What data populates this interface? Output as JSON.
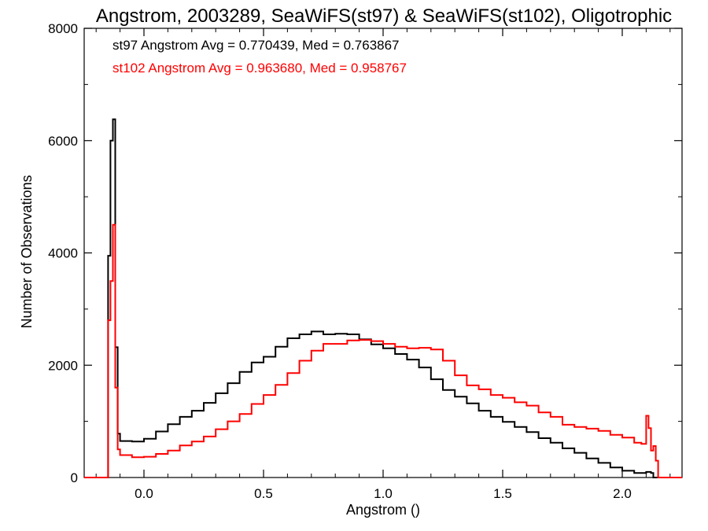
{
  "chart_data": {
    "type": "line",
    "title": "Angstrom, 2003289, SeaWiFS(st97) & SeaWiFS(st102), Oligotrophic",
    "xlabel": "Angstrom ()",
    "ylabel": "Number of Observations",
    "xlim": [
      -0.25,
      2.25
    ],
    "ylim": [
      0,
      8000
    ],
    "x_ticks": [
      0.0,
      0.5,
      1.0,
      1.5,
      2.0
    ],
    "x_tick_labels": [
      "0.0",
      "0.5",
      "1.0",
      "1.5",
      "2.0"
    ],
    "y_ticks": [
      0,
      2000,
      4000,
      6000,
      8000
    ],
    "y_tick_labels": [
      "0",
      "2000",
      "4000",
      "6000",
      "8000"
    ],
    "grid": false,
    "legend_position": "top-left",
    "series": [
      {
        "name": "st97",
        "color": "#000000",
        "annotation": "st97 Angstrom Avg = 0.770439, Med = 0.763867",
        "x": [
          -0.25,
          -0.16,
          -0.15,
          -0.14,
          -0.13,
          -0.12,
          -0.11,
          -0.1,
          -0.05,
          0.0,
          0.05,
          0.1,
          0.15,
          0.2,
          0.25,
          0.3,
          0.35,
          0.4,
          0.45,
          0.5,
          0.55,
          0.6,
          0.65,
          0.7,
          0.75,
          0.8,
          0.85,
          0.9,
          0.95,
          1.0,
          1.05,
          1.1,
          1.15,
          1.2,
          1.25,
          1.3,
          1.35,
          1.4,
          1.45,
          1.5,
          1.55,
          1.6,
          1.65,
          1.7,
          1.75,
          1.8,
          1.85,
          1.9,
          1.95,
          2.0,
          2.05,
          2.1,
          2.12,
          2.13,
          2.15,
          2.25
        ],
        "values": [
          0,
          0,
          3950,
          6000,
          6380,
          2320,
          780,
          650,
          640,
          690,
          820,
          950,
          1080,
          1190,
          1330,
          1500,
          1680,
          1880,
          2050,
          2150,
          2330,
          2480,
          2550,
          2600,
          2550,
          2560,
          2550,
          2460,
          2370,
          2300,
          2200,
          2100,
          1960,
          1750,
          1560,
          1440,
          1320,
          1190,
          1080,
          990,
          900,
          810,
          700,
          620,
          520,
          440,
          340,
          260,
          180,
          120,
          80,
          100,
          80,
          0,
          0,
          0
        ]
      },
      {
        "name": "st102",
        "color": "#ff0000",
        "annotation": "st102 Angstrom Avg = 0.963680, Med = 0.958767",
        "x": [
          -0.25,
          -0.16,
          -0.15,
          -0.14,
          -0.13,
          -0.12,
          -0.11,
          -0.1,
          -0.05,
          0.0,
          0.05,
          0.1,
          0.15,
          0.2,
          0.25,
          0.3,
          0.35,
          0.4,
          0.45,
          0.5,
          0.55,
          0.6,
          0.65,
          0.7,
          0.75,
          0.8,
          0.85,
          0.9,
          0.95,
          1.0,
          1.05,
          1.1,
          1.15,
          1.2,
          1.25,
          1.3,
          1.35,
          1.4,
          1.45,
          1.5,
          1.55,
          1.6,
          1.65,
          1.7,
          1.75,
          1.8,
          1.85,
          1.9,
          1.95,
          2.0,
          2.05,
          2.08,
          2.1,
          2.11,
          2.12,
          2.13,
          2.14,
          2.15,
          2.25
        ],
        "values": [
          0,
          0,
          2800,
          3500,
          4500,
          1600,
          500,
          400,
          360,
          370,
          420,
          480,
          570,
          640,
          730,
          860,
          1000,
          1130,
          1310,
          1470,
          1650,
          1860,
          2080,
          2260,
          2380,
          2380,
          2440,
          2450,
          2430,
          2380,
          2330,
          2300,
          2310,
          2280,
          2080,
          1820,
          1640,
          1570,
          1470,
          1420,
          1340,
          1280,
          1160,
          1080,
          940,
          900,
          870,
          830,
          760,
          710,
          620,
          600,
          1100,
          880,
          480,
          560,
          300,
          0,
          0
        ]
      }
    ]
  }
}
